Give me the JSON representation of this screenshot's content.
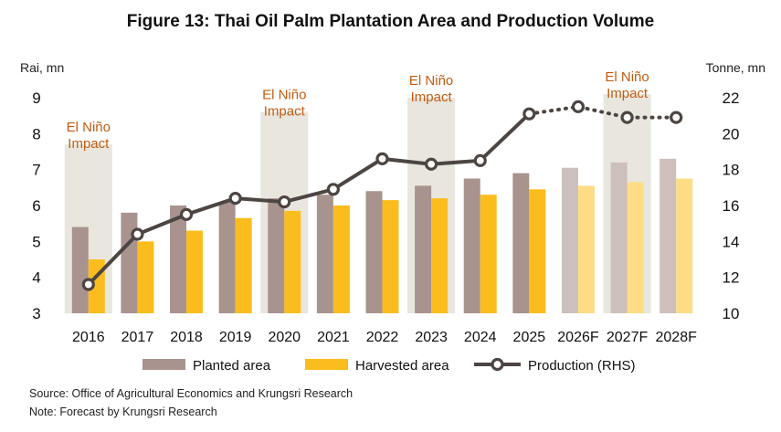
{
  "chart_data": {
    "type": "bar",
    "title": "Figure 13: Thai Oil Palm Plantation Area and Production Volume",
    "ylabel_left": "Rai, mn",
    "ylabel_right": "Tonne, mn",
    "ylim_left": [
      3,
      9
    ],
    "ylim_right": [
      10,
      22
    ],
    "yticks_left": [
      "3",
      "4",
      "5",
      "6",
      "7",
      "8",
      "9"
    ],
    "yticks_right": [
      "10",
      "12",
      "14",
      "16",
      "18",
      "20",
      "22"
    ],
    "categories": [
      "2016",
      "2017",
      "2018",
      "2019",
      "2020",
      "2021",
      "2022",
      "2023",
      "2024",
      "2025",
      "2026F",
      "2027F",
      "2028F"
    ],
    "forecast_from_index": 10,
    "series": [
      {
        "name": "Planted area",
        "axis": "left",
        "kind": "bar",
        "values": [
          5.4,
          5.8,
          6.0,
          6.1,
          6.2,
          6.3,
          6.4,
          6.55,
          6.75,
          6.9,
          7.05,
          7.2,
          7.3
        ]
      },
      {
        "name": "Harvested area",
        "axis": "left",
        "kind": "bar",
        "values": [
          4.5,
          5.0,
          5.3,
          5.65,
          5.85,
          6.0,
          6.15,
          6.2,
          6.3,
          6.45,
          6.55,
          6.65,
          6.75
        ]
      },
      {
        "name": "Production (RHS)",
        "axis": "right",
        "kind": "line",
        "values": [
          11.6,
          14.4,
          15.5,
          16.4,
          16.2,
          16.9,
          18.6,
          18.3,
          18.5,
          21.1,
          21.5,
          20.9,
          20.9
        ]
      }
    ],
    "el_nino": {
      "label": "El Niño Impact",
      "spans": [
        {
          "index": 0,
          "top": 7.7
        },
        {
          "index": 4,
          "top": 8.6
        },
        {
          "index": 7,
          "top": 9.0
        },
        {
          "index": 11,
          "top": 9.1
        }
      ]
    },
    "grid": false,
    "legend_position": "bottom"
  },
  "colors": {
    "planted": "#a8938e",
    "planted_forecast": "#cdbfbb",
    "harvested": "#fbbd1d",
    "harvested_forecast": "#fddc85",
    "production_line": "#4d4542",
    "el_nino_band": "#e8e6dd",
    "el_nino_text": "#c25b10"
  },
  "source": "Source: Office of Agricultural Economics and Krungsri Research",
  "note": "Note: Forecast by Krungsri Research"
}
